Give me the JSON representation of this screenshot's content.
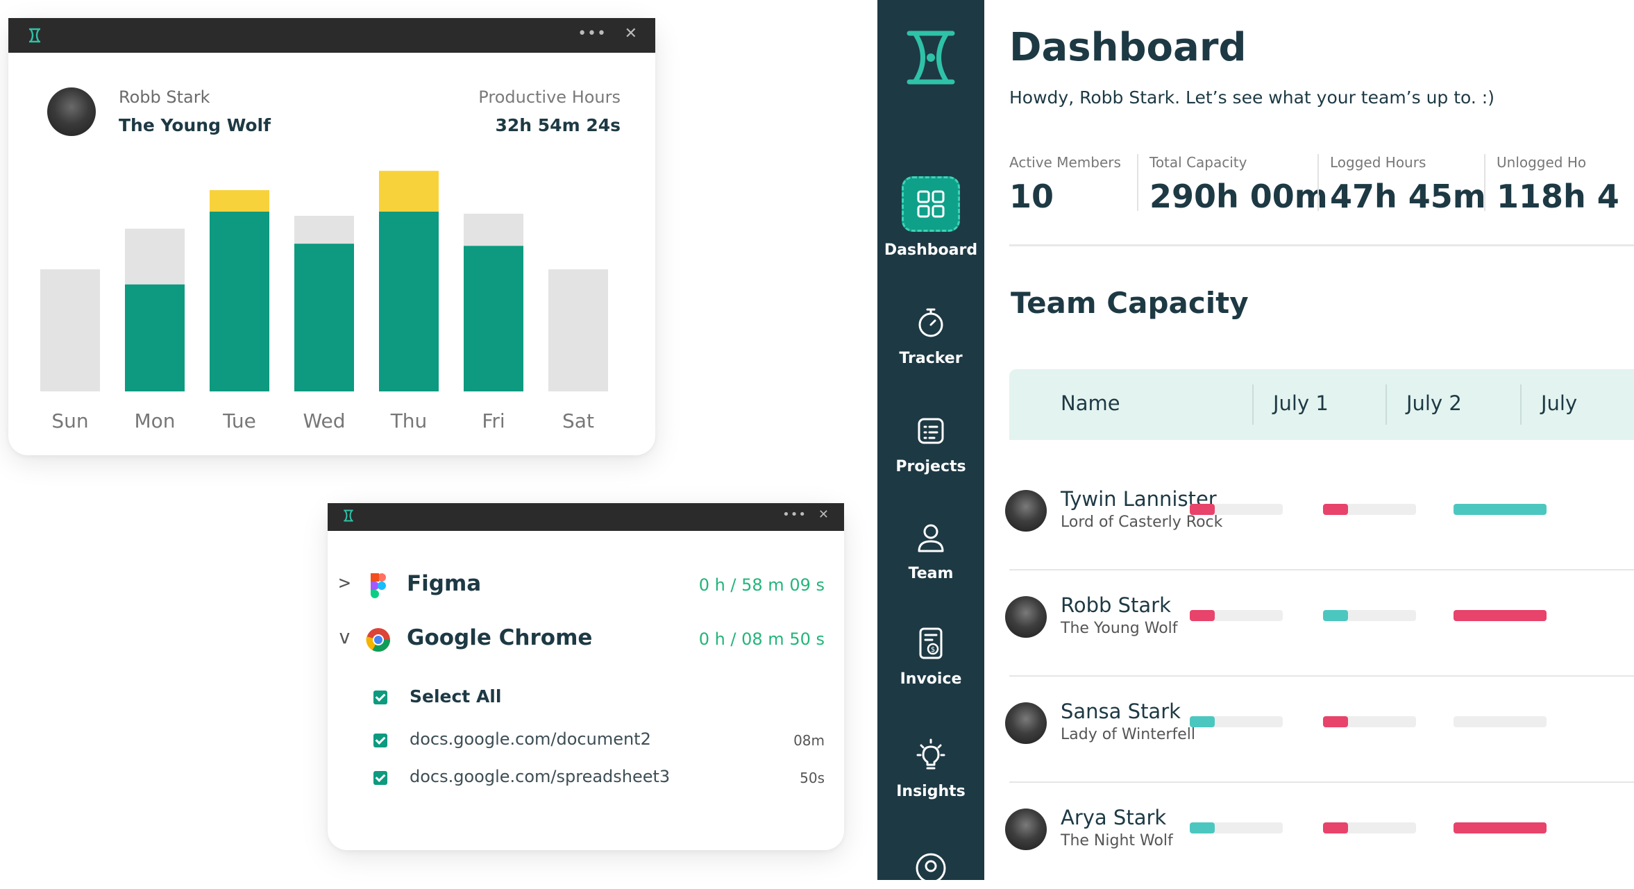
{
  "colors": {
    "teal": "#0d9a80",
    "yellow": "#f8d23a",
    "gray_bar": "#e3e3e3",
    "navy": "#1d3944",
    "red": "#e8436a",
    "cyan": "#4cc7c0",
    "green_text": "#22b57a"
  },
  "chart_widget": {
    "user_name": "Robb Stark",
    "user_title": "The Young Wolf",
    "productive_label": "Productive Hours",
    "productive_value": "32h 54m 24s"
  },
  "chart_data": {
    "type": "bar",
    "stacked": true,
    "categories": [
      "Sun",
      "Mon",
      "Tue",
      "Wed",
      "Thu",
      "Fri",
      "Sat"
    ],
    "series": [
      {
        "key": "teal",
        "values": [
          0,
          5.0,
          8.4,
          6.9,
          8.4,
          6.8,
          0
        ]
      },
      {
        "key": "yellow",
        "values": [
          0,
          0,
          1.0,
          0,
          1.9,
          0,
          0
        ]
      },
      {
        "key": "gray",
        "values": [
          5.7,
          2.6,
          0,
          1.3,
          0,
          1.5,
          5.7
        ]
      }
    ],
    "ylim": [
      0,
      10.5
    ],
    "grid": false,
    "legend": "none"
  },
  "apps_widget": {
    "apps": [
      {
        "chevron": ">",
        "name": "Figma",
        "time": "0 h / 58 m 09 s",
        "icon": "figma-icon"
      },
      {
        "chevron": "v",
        "name": "Google Chrome",
        "time": "0 h / 08 m 50 s",
        "icon": "chrome-icon"
      }
    ],
    "select_all": "Select All",
    "urls": [
      {
        "url": "docs.google.com/document2",
        "duration": "08m"
      },
      {
        "url": "docs.google.com/spreadsheet3",
        "duration": "50s"
      }
    ]
  },
  "sidebar": {
    "items": [
      {
        "label": "Dashboard",
        "icon": "dashboard-icon",
        "active": true
      },
      {
        "label": "Tracker",
        "icon": "stopwatch-icon"
      },
      {
        "label": "Projects",
        "icon": "projects-icon"
      },
      {
        "label": "Team",
        "icon": "team-icon"
      },
      {
        "label": "Invoice",
        "icon": "invoice-icon"
      },
      {
        "label": "Insights",
        "icon": "lightbulb-icon"
      }
    ]
  },
  "dashboard": {
    "title": "Dashboard",
    "greeting": "Howdy, Robb Stark. Let’s see what your team’s up to. :)",
    "stats": [
      {
        "label": "Active Members",
        "value": "10"
      },
      {
        "label": "Total Capacity",
        "value": "290h 00m"
      },
      {
        "label": "Logged Hours",
        "value": "47h 45m"
      },
      {
        "label": "Unlogged Ho",
        "value": "118h 4"
      }
    ],
    "section_title": "Team Capacity",
    "columns": [
      "Name",
      "July 1",
      "July 2",
      "July"
    ],
    "members": [
      {
        "name": "Tywin Lannister",
        "title": "Lord of Casterly Rock",
        "capacity": [
          {
            "color": "red",
            "fraction": 0.27
          },
          {
            "color": "red",
            "fraction": 0.27
          },
          {
            "color": "cyan",
            "fraction": 1.0
          }
        ]
      },
      {
        "name": "Robb Stark",
        "title": "The Young Wolf",
        "capacity": [
          {
            "color": "red",
            "fraction": 0.27
          },
          {
            "color": "cyan",
            "fraction": 0.27
          },
          {
            "color": "red",
            "fraction": 1.0
          }
        ]
      },
      {
        "name": "Sansa Stark",
        "title": "Lady of Winterfell",
        "capacity": [
          {
            "color": "cyan",
            "fraction": 0.27
          },
          {
            "color": "red",
            "fraction": 0.27
          },
          {
            "color": "none",
            "fraction": 0
          }
        ]
      },
      {
        "name": "Arya Stark",
        "title": "The Night Wolf",
        "capacity": [
          {
            "color": "cyan",
            "fraction": 0.27
          },
          {
            "color": "red",
            "fraction": 0.27
          },
          {
            "color": "red",
            "fraction": 1.0
          }
        ]
      }
    ]
  }
}
